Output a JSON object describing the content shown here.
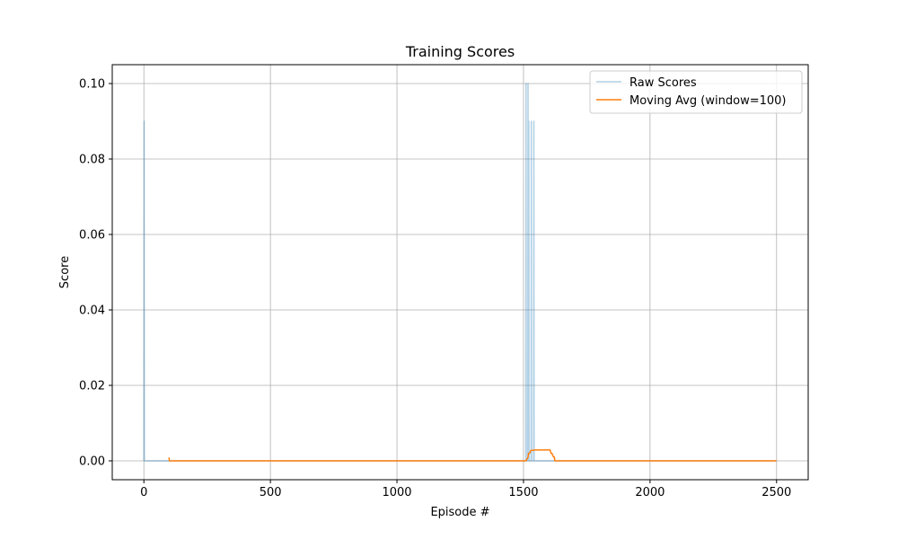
{
  "chart_data": {
    "type": "line",
    "title": "Training Scores",
    "xlabel": "Episode #",
    "ylabel": "Score",
    "xlim": [
      -125,
      2625
    ],
    "ylim": [
      -0.005,
      0.105
    ],
    "xticks": [
      0,
      500,
      1000,
      1500,
      2000,
      2500
    ],
    "xtick_labels": [
      "0",
      "500",
      "1000",
      "1500",
      "2000",
      "2500"
    ],
    "yticks": [
      0.0,
      0.02,
      0.04,
      0.06,
      0.08,
      0.1
    ],
    "ytick_labels": [
      "0.00",
      "0.02",
      "0.04",
      "0.06",
      "0.08",
      "0.10"
    ],
    "grid": true,
    "legend_position": "top-right",
    "series": [
      {
        "name": "Raw Scores",
        "color": "#1f77b4",
        "opacity": 0.35,
        "x": [
          0,
          1,
          2,
          100,
          1509,
          1510,
          1511,
          1512,
          1513,
          1517,
          1518,
          1519,
          1520,
          1521,
          1522,
          1523,
          1524,
          1525,
          1530,
          1531,
          1532,
          1533,
          1534,
          1535,
          1536,
          1537,
          1538,
          1539,
          1540,
          1541,
          1542,
          1543,
          2499
        ],
        "y": [
          0.0,
          0.09,
          0.0,
          0.0,
          0.0,
          0.1,
          0.0,
          0.0,
          0.0,
          0.0,
          0.1,
          0.0,
          0.0,
          0.09,
          0.0,
          0.0,
          0.0,
          0.0,
          0.0,
          0.09,
          0.0,
          0.0,
          0.0,
          0.0,
          0.0,
          0.0,
          0.0,
          0.0,
          0.0,
          0.09,
          0.0,
          0.0,
          0.0
        ]
      },
      {
        "name": "Moving Avg (window=100)",
        "color": "#ff7f0e",
        "opacity": 1,
        "x": [
          99,
          101,
          1505,
          1510,
          1518,
          1520,
          1524,
          1530,
          1540,
          1545,
          1600,
          1605,
          1609,
          1612,
          1619,
          1622,
          1624,
          1630,
          1645,
          2499
        ],
        "y": [
          0.0009,
          0.0,
          0.0,
          0.0,
          0.001,
          0.002,
          0.002,
          0.0028,
          0.0028,
          0.0029,
          0.0029,
          0.0029,
          0.002,
          0.002,
          0.001,
          0.001,
          0.0,
          0.0,
          0.0,
          0.0
        ]
      }
    ]
  }
}
